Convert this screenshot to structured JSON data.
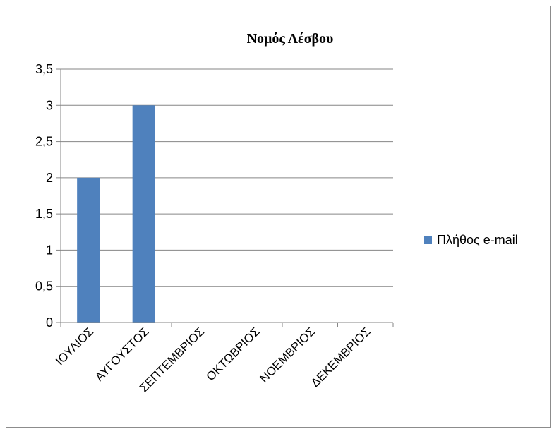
{
  "chart_data": {
    "type": "bar",
    "title": "Νομός Λέσβου",
    "categories": [
      "ΙΟΥΛΙΟΣ",
      "ΑΥΓΟΥΣΤΟΣ",
      "ΣΕΠΤΕΜΒΡΙΟΣ",
      "ΟΚΤΩΒΡΙΟΣ",
      "ΝΟΕΜΒΡΙΟΣ",
      "ΔΕΚΕΜΒΡΙΟΣ"
    ],
    "series": [
      {
        "name": "Πλήθος e-mail",
        "values": [
          2,
          3,
          0,
          0,
          0,
          0
        ],
        "color": "#4f81bd"
      }
    ],
    "y_ticks": [
      "0",
      "0,5",
      "1",
      "1,5",
      "2",
      "2,5",
      "3",
      "3,5"
    ],
    "y_tick_values": [
      0,
      0.5,
      1,
      1.5,
      2,
      2.5,
      3,
      3.5
    ],
    "ylim": [
      0,
      3.5
    ],
    "xlabel": "",
    "ylabel": "",
    "grid": true,
    "legend_position": "right"
  },
  "colors": {
    "bar": "#4f81bd",
    "grid": "#868686",
    "axis": "#868686"
  }
}
